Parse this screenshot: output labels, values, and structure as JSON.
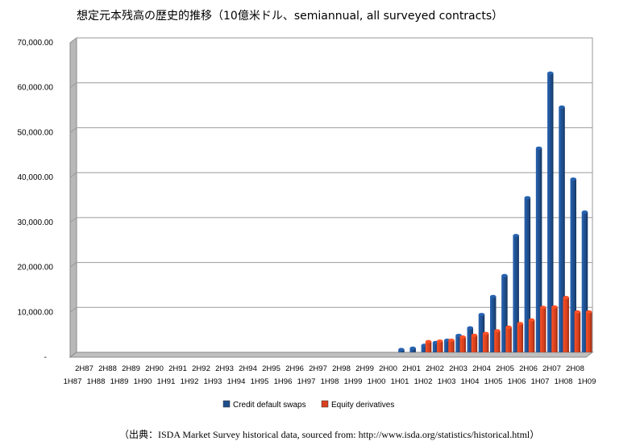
{
  "chart_data": {
    "type": "bar",
    "title": "想定元本残高の歴史的推移（10億米ドル、semiannual, all surveyed contracts）",
    "source": "（出典：ISDA Market Survey historical data, sourced from: http://www.isda.org/statistics/historical.html）",
    "xlabel": "",
    "ylabel": "",
    "ylim": [
      0,
      70000
    ],
    "yticks": [
      "-",
      "10,000.00",
      "20,000.00",
      "30,000.00",
      "40,000.00",
      "50,000.00",
      "60,000.00",
      "70,000.00"
    ],
    "grid": true,
    "legend_position": "bottom",
    "categories": [
      "1H87",
      "2H87",
      "1H88",
      "2H88",
      "1H89",
      "2H89",
      "1H90",
      "2H90",
      "1H91",
      "2H91",
      "1H92",
      "2H92",
      "1H93",
      "2H93",
      "1H94",
      "2H94",
      "1H95",
      "2H95",
      "1H96",
      "2H96",
      "1H97",
      "2H97",
      "1H98",
      "2H98",
      "1H99",
      "2H99",
      "1H00",
      "2H00",
      "1H01",
      "2H01",
      "1H02",
      "2H02",
      "1H03",
      "2H03",
      "1H04",
      "2H04",
      "1H05",
      "2H05",
      "1H06",
      "2H06",
      "1H07",
      "2H07",
      "1H08",
      "2H08",
      "1H09"
    ],
    "series": [
      {
        "name": "Credit default swaps",
        "color": "#1F4E8C",
        "values": [
          0,
          0,
          0,
          0,
          0,
          0,
          0,
          0,
          0,
          0,
          0,
          0,
          0,
          0,
          0,
          0,
          0,
          0,
          0,
          0,
          0,
          0,
          0,
          0,
          0,
          0,
          0,
          0,
          632,
          919,
          1563,
          2192,
          2688,
          3779,
          5442,
          8422,
          12430,
          17096,
          26006,
          34423,
          45464,
          62173,
          54612,
          38564,
          31223
        ]
      },
      {
        "name": "Equity derivatives",
        "color": "#D9411E",
        "values": [
          0,
          0,
          0,
          0,
          0,
          0,
          0,
          0,
          0,
          0,
          0,
          0,
          0,
          0,
          0,
          0,
          0,
          0,
          0,
          0,
          0,
          0,
          0,
          0,
          0,
          0,
          0,
          0,
          0,
          0,
          2400,
          2500,
          2700,
          3400,
          3800,
          4200,
          4800,
          5600,
          6400,
          7200,
          10000,
          10100,
          12200,
          9000,
          9000
        ]
      }
    ]
  }
}
